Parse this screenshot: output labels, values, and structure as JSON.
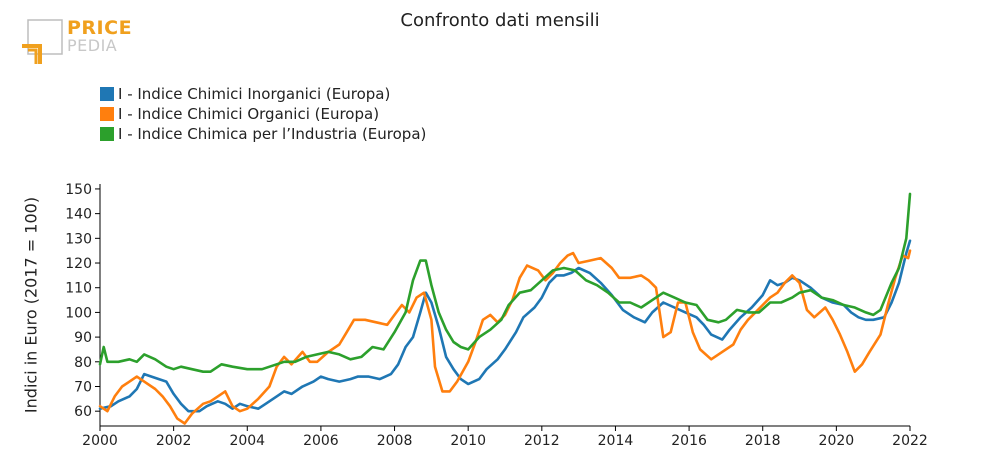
{
  "logo": {
    "line1": "PRICE",
    "line2": "PEDIA"
  },
  "colors": {
    "inorganici": "#1f77b4",
    "organici": "#ff7f0e",
    "industria": "#2ca02c"
  },
  "chart_data": {
    "type": "line",
    "title": "Confronto dati mensili",
    "ylabel": "Indici in Euro (2017 = 100)",
    "xlabel": "",
    "xlim": [
      2000,
      2022
    ],
    "ylim": [
      54,
      152
    ],
    "xticks": [
      2000,
      2002,
      2004,
      2006,
      2008,
      2010,
      2012,
      2014,
      2016,
      2018,
      2020,
      2022
    ],
    "yticks": [
      60,
      70,
      80,
      90,
      100,
      110,
      120,
      130,
      140,
      150
    ],
    "legend": "top-left",
    "grid": false,
    "series": [
      {
        "name": "I - Indice Chimici Inorganici (Europa)",
        "color": "#1f77b4",
        "points": [
          [
            2000.0,
            61
          ],
          [
            2000.3,
            62
          ],
          [
            2000.5,
            64
          ],
          [
            2000.8,
            66
          ],
          [
            2001.0,
            69
          ],
          [
            2001.2,
            75
          ],
          [
            2001.4,
            74
          ],
          [
            2001.6,
            73
          ],
          [
            2001.8,
            72
          ],
          [
            2002.0,
            67
          ],
          [
            2002.2,
            63
          ],
          [
            2002.4,
            60
          ],
          [
            2002.7,
            60
          ],
          [
            2002.9,
            62
          ],
          [
            2003.2,
            64
          ],
          [
            2003.4,
            63
          ],
          [
            2003.6,
            61
          ],
          [
            2003.8,
            63
          ],
          [
            2004.0,
            62
          ],
          [
            2004.3,
            61
          ],
          [
            2004.5,
            63
          ],
          [
            2004.8,
            66
          ],
          [
            2005.0,
            68
          ],
          [
            2005.2,
            67
          ],
          [
            2005.5,
            70
          ],
          [
            2005.8,
            72
          ],
          [
            2006.0,
            74
          ],
          [
            2006.2,
            73
          ],
          [
            2006.5,
            72
          ],
          [
            2006.8,
            73
          ],
          [
            2007.0,
            74
          ],
          [
            2007.3,
            74
          ],
          [
            2007.6,
            73
          ],
          [
            2007.9,
            75
          ],
          [
            2008.1,
            79
          ],
          [
            2008.3,
            86
          ],
          [
            2008.5,
            90
          ],
          [
            2008.7,
            100
          ],
          [
            2008.85,
            108
          ],
          [
            2009.0,
            104
          ],
          [
            2009.2,
            94
          ],
          [
            2009.4,
            82
          ],
          [
            2009.6,
            77
          ],
          [
            2009.8,
            73
          ],
          [
            2010.0,
            71
          ],
          [
            2010.3,
            73
          ],
          [
            2010.5,
            77
          ],
          [
            2010.8,
            81
          ],
          [
            2011.0,
            85
          ],
          [
            2011.3,
            92
          ],
          [
            2011.5,
            98
          ],
          [
            2011.8,
            102
          ],
          [
            2012.0,
            106
          ],
          [
            2012.2,
            112
          ],
          [
            2012.4,
            115
          ],
          [
            2012.6,
            115
          ],
          [
            2012.8,
            116
          ],
          [
            2013.0,
            118
          ],
          [
            2013.3,
            116
          ],
          [
            2013.6,
            112
          ],
          [
            2013.9,
            107
          ],
          [
            2014.2,
            101
          ],
          [
            2014.5,
            98
          ],
          [
            2014.8,
            96
          ],
          [
            2015.0,
            100
          ],
          [
            2015.3,
            104
          ],
          [
            2015.6,
            102
          ],
          [
            2015.9,
            100
          ],
          [
            2016.2,
            98
          ],
          [
            2016.4,
            95
          ],
          [
            2016.6,
            91
          ],
          [
            2016.9,
            89
          ],
          [
            2017.1,
            93
          ],
          [
            2017.4,
            98
          ],
          [
            2017.7,
            102
          ],
          [
            2018.0,
            107
          ],
          [
            2018.2,
            113
          ],
          [
            2018.4,
            111
          ],
          [
            2018.6,
            112
          ],
          [
            2018.8,
            114
          ],
          [
            2019.0,
            113
          ],
          [
            2019.3,
            110
          ],
          [
            2019.6,
            106
          ],
          [
            2019.9,
            104
          ],
          [
            2020.2,
            103
          ],
          [
            2020.4,
            100
          ],
          [
            2020.6,
            98
          ],
          [
            2020.8,
            97
          ],
          [
            2021.0,
            97
          ],
          [
            2021.3,
            98
          ],
          [
            2021.5,
            104
          ],
          [
            2021.7,
            112
          ],
          [
            2021.9,
            124
          ],
          [
            2022.0,
            129
          ]
        ]
      },
      {
        "name": "I - Indice Chimici Organici (Europa)",
        "color": "#ff7f0e",
        "points": [
          [
            2000.0,
            62
          ],
          [
            2000.2,
            60
          ],
          [
            2000.4,
            66
          ],
          [
            2000.6,
            70
          ],
          [
            2000.8,
            72
          ],
          [
            2001.0,
            74
          ],
          [
            2001.2,
            72
          ],
          [
            2001.5,
            69
          ],
          [
            2001.7,
            66
          ],
          [
            2001.9,
            62
          ],
          [
            2002.1,
            57
          ],
          [
            2002.3,
            55
          ],
          [
            2002.5,
            59
          ],
          [
            2002.8,
            63
          ],
          [
            2003.0,
            64
          ],
          [
            2003.2,
            66
          ],
          [
            2003.4,
            68
          ],
          [
            2003.6,
            62
          ],
          [
            2003.8,
            60
          ],
          [
            2004.0,
            61
          ],
          [
            2004.3,
            65
          ],
          [
            2004.6,
            70
          ],
          [
            2004.8,
            78
          ],
          [
            2005.0,
            82
          ],
          [
            2005.2,
            79
          ],
          [
            2005.5,
            84
          ],
          [
            2005.7,
            80
          ],
          [
            2005.9,
            80
          ],
          [
            2006.2,
            84
          ],
          [
            2006.5,
            87
          ],
          [
            2006.7,
            92
          ],
          [
            2006.9,
            97
          ],
          [
            2007.2,
            97
          ],
          [
            2007.5,
            96
          ],
          [
            2007.8,
            95
          ],
          [
            2008.0,
            99
          ],
          [
            2008.2,
            103
          ],
          [
            2008.4,
            100
          ],
          [
            2008.6,
            106
          ],
          [
            2008.8,
            108
          ],
          [
            2009.0,
            97
          ],
          [
            2009.1,
            78
          ],
          [
            2009.3,
            68
          ],
          [
            2009.5,
            68
          ],
          [
            2009.7,
            72
          ],
          [
            2010.0,
            80
          ],
          [
            2010.2,
            88
          ],
          [
            2010.4,
            97
          ],
          [
            2010.6,
            99
          ],
          [
            2010.8,
            96
          ],
          [
            2011.0,
            99
          ],
          [
            2011.2,
            105
          ],
          [
            2011.4,
            114
          ],
          [
            2011.6,
            119
          ],
          [
            2011.9,
            117
          ],
          [
            2012.1,
            113
          ],
          [
            2012.3,
            116
          ],
          [
            2012.5,
            120
          ],
          [
            2012.7,
            123
          ],
          [
            2012.85,
            124
          ],
          [
            2013.0,
            120
          ],
          [
            2013.3,
            121
          ],
          [
            2013.6,
            122
          ],
          [
            2013.9,
            118
          ],
          [
            2014.1,
            114
          ],
          [
            2014.4,
            114
          ],
          [
            2014.7,
            115
          ],
          [
            2014.9,
            113
          ],
          [
            2015.1,
            110
          ],
          [
            2015.3,
            90
          ],
          [
            2015.5,
            92
          ],
          [
            2015.7,
            104
          ],
          [
            2015.9,
            104
          ],
          [
            2016.1,
            92
          ],
          [
            2016.3,
            85
          ],
          [
            2016.6,
            81
          ],
          [
            2016.9,
            84
          ],
          [
            2017.2,
            87
          ],
          [
            2017.4,
            93
          ],
          [
            2017.6,
            97
          ],
          [
            2017.8,
            100
          ],
          [
            2018.0,
            103
          ],
          [
            2018.2,
            106
          ],
          [
            2018.4,
            108
          ],
          [
            2018.6,
            112
          ],
          [
            2018.8,
            115
          ],
          [
            2019.0,
            112
          ],
          [
            2019.2,
            101
          ],
          [
            2019.4,
            98
          ],
          [
            2019.7,
            102
          ],
          [
            2019.9,
            97
          ],
          [
            2020.1,
            91
          ],
          [
            2020.3,
            84
          ],
          [
            2020.5,
            76
          ],
          [
            2020.7,
            79
          ],
          [
            2020.9,
            84
          ],
          [
            2021.2,
            91
          ],
          [
            2021.4,
            103
          ],
          [
            2021.6,
            114
          ],
          [
            2021.8,
            123
          ],
          [
            2021.95,
            122
          ],
          [
            2022.0,
            125
          ]
        ]
      },
      {
        "name": "I - Indice Chimica per l’Industria (Europa)",
        "color": "#2ca02c",
        "points": [
          [
            2000.0,
            79
          ],
          [
            2000.1,
            86
          ],
          [
            2000.2,
            80
          ],
          [
            2000.5,
            80
          ],
          [
            2000.8,
            81
          ],
          [
            2001.0,
            80
          ],
          [
            2001.2,
            83
          ],
          [
            2001.5,
            81
          ],
          [
            2001.8,
            78
          ],
          [
            2002.0,
            77
          ],
          [
            2002.2,
            78
          ],
          [
            2002.5,
            77
          ],
          [
            2002.8,
            76
          ],
          [
            2003.0,
            76
          ],
          [
            2003.3,
            79
          ],
          [
            2003.6,
            78
          ],
          [
            2004.0,
            77
          ],
          [
            2004.4,
            77
          ],
          [
            2004.8,
            79
          ],
          [
            2005.0,
            80
          ],
          [
            2005.3,
            80
          ],
          [
            2005.6,
            82
          ],
          [
            2005.9,
            83
          ],
          [
            2006.2,
            84
          ],
          [
            2006.5,
            83
          ],
          [
            2006.8,
            81
          ],
          [
            2007.1,
            82
          ],
          [
            2007.4,
            86
          ],
          [
            2007.7,
            85
          ],
          [
            2008.0,
            92
          ],
          [
            2008.3,
            100
          ],
          [
            2008.5,
            113
          ],
          [
            2008.7,
            121
          ],
          [
            2008.85,
            121
          ],
          [
            2009.0,
            111
          ],
          [
            2009.2,
            100
          ],
          [
            2009.4,
            93
          ],
          [
            2009.6,
            88
          ],
          [
            2009.8,
            86
          ],
          [
            2010.0,
            85
          ],
          [
            2010.3,
            90
          ],
          [
            2010.6,
            93
          ],
          [
            2010.9,
            97
          ],
          [
            2011.1,
            103
          ],
          [
            2011.4,
            108
          ],
          [
            2011.7,
            109
          ],
          [
            2012.0,
            113
          ],
          [
            2012.3,
            117
          ],
          [
            2012.6,
            118
          ],
          [
            2012.9,
            117
          ],
          [
            2013.2,
            113
          ],
          [
            2013.5,
            111
          ],
          [
            2013.8,
            108
          ],
          [
            2014.1,
            104
          ],
          [
            2014.4,
            104
          ],
          [
            2014.7,
            102
          ],
          [
            2015.0,
            105
          ],
          [
            2015.3,
            108
          ],
          [
            2015.6,
            106
          ],
          [
            2015.9,
            104
          ],
          [
            2016.2,
            103
          ],
          [
            2016.5,
            97
          ],
          [
            2016.8,
            96
          ],
          [
            2017.0,
            97
          ],
          [
            2017.3,
            101
          ],
          [
            2017.6,
            100
          ],
          [
            2017.9,
            100
          ],
          [
            2018.2,
            104
          ],
          [
            2018.5,
            104
          ],
          [
            2018.8,
            106
          ],
          [
            2019.0,
            108
          ],
          [
            2019.3,
            109
          ],
          [
            2019.6,
            106
          ],
          [
            2019.9,
            105
          ],
          [
            2020.2,
            103
          ],
          [
            2020.5,
            102
          ],
          [
            2020.8,
            100
          ],
          [
            2021.0,
            99
          ],
          [
            2021.2,
            101
          ],
          [
            2021.5,
            112
          ],
          [
            2021.7,
            118
          ],
          [
            2021.9,
            130
          ],
          [
            2022.0,
            148
          ]
        ]
      }
    ]
  }
}
